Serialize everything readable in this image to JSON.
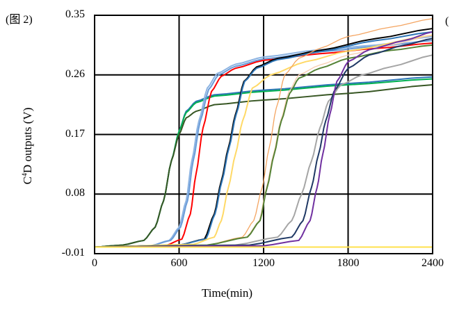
{
  "figure_label": "(图 2)",
  "edge_label": "(",
  "chart_data": {
    "type": "line",
    "title": "",
    "xlabel": "Time(min)",
    "ylabel_main": "C",
    "ylabel_sup": "4",
    "ylabel_rest": "D outputs (V)",
    "xlim": [
      0,
      2400
    ],
    "ylim": [
      -0.01,
      0.35
    ],
    "xticks": [
      "0",
      "600",
      "1200",
      "1800",
      "2400"
    ],
    "xtick_values": [
      0,
      600,
      1200,
      1800,
      2400
    ],
    "yticks": [
      "0.35",
      "0.26",
      "0.17",
      "0.08",
      "-0.01"
    ],
    "ytick_values": [
      0.35,
      0.26,
      0.17,
      0.08,
      -0.01
    ],
    "grid": true,
    "legend": "none",
    "series": [
      {
        "name": "teal",
        "color": "#2e75b6",
        "points": [
          [
            0,
            0
          ],
          [
            200,
            0.003
          ],
          [
            350,
            0.01
          ],
          [
            430,
            0.03
          ],
          [
            490,
            0.07
          ],
          [
            545,
            0.13
          ],
          [
            600,
            0.175
          ],
          [
            650,
            0.205
          ],
          [
            720,
            0.22
          ],
          [
            850,
            0.23
          ],
          [
            1200,
            0.237
          ],
          [
            1800,
            0.247
          ],
          [
            2400,
            0.257
          ]
        ]
      },
      {
        "name": "green",
        "color": "#00b050",
        "points": [
          [
            0,
            0
          ],
          [
            200,
            0.003
          ],
          [
            350,
            0.01
          ],
          [
            430,
            0.03
          ],
          [
            490,
            0.07
          ],
          [
            545,
            0.13
          ],
          [
            600,
            0.175
          ],
          [
            650,
            0.203
          ],
          [
            720,
            0.218
          ],
          [
            850,
            0.228
          ],
          [
            1200,
            0.235
          ],
          [
            1800,
            0.245
          ],
          [
            2400,
            0.254
          ]
        ]
      },
      {
        "name": "dark-green",
        "color": "#375623",
        "points": [
          [
            0,
            0
          ],
          [
            200,
            0.003
          ],
          [
            350,
            0.01
          ],
          [
            430,
            0.03
          ],
          [
            490,
            0.07
          ],
          [
            545,
            0.13
          ],
          [
            600,
            0.17
          ],
          [
            650,
            0.195
          ],
          [
            720,
            0.205
          ],
          [
            850,
            0.215
          ],
          [
            1200,
            0.222
          ],
          [
            1800,
            0.232
          ],
          [
            2400,
            0.245
          ]
        ]
      },
      {
        "name": "light-blue-1",
        "color": "#8db4e2",
        "points": [
          [
            0,
            0
          ],
          [
            400,
            0.002
          ],
          [
            530,
            0.01
          ],
          [
            600,
            0.03
          ],
          [
            650,
            0.07
          ],
          [
            690,
            0.13
          ],
          [
            740,
            0.19
          ],
          [
            800,
            0.24
          ],
          [
            870,
            0.262
          ],
          [
            1000,
            0.276
          ],
          [
            1200,
            0.287
          ],
          [
            1600,
            0.298
          ],
          [
            2000,
            0.305
          ],
          [
            2400,
            0.318
          ]
        ]
      },
      {
        "name": "light-blue-2",
        "color": "#6a9bd8",
        "points": [
          [
            0,
            0
          ],
          [
            400,
            0.002
          ],
          [
            540,
            0.01
          ],
          [
            610,
            0.03
          ],
          [
            660,
            0.07
          ],
          [
            700,
            0.13
          ],
          [
            750,
            0.19
          ],
          [
            810,
            0.238
          ],
          [
            880,
            0.26
          ],
          [
            1000,
            0.273
          ],
          [
            1200,
            0.284
          ],
          [
            1600,
            0.295
          ],
          [
            2000,
            0.303
          ],
          [
            2400,
            0.312
          ]
        ]
      },
      {
        "name": "red",
        "color": "#ff0000",
        "points": [
          [
            0,
            0
          ],
          [
            500,
            0.002
          ],
          [
            620,
            0.012
          ],
          [
            680,
            0.05
          ],
          [
            720,
            0.11
          ],
          [
            770,
            0.18
          ],
          [
            830,
            0.235
          ],
          [
            900,
            0.258
          ],
          [
            1000,
            0.27
          ],
          [
            1200,
            0.282
          ],
          [
            1600,
            0.292
          ],
          [
            2000,
            0.3
          ],
          [
            2400,
            0.308
          ]
        ]
      },
      {
        "name": "black",
        "color": "#000000",
        "points": [
          [
            0,
            0
          ],
          [
            600,
            0.003
          ],
          [
            780,
            0.012
          ],
          [
            850,
            0.05
          ],
          [
            900,
            0.1
          ],
          [
            950,
            0.15
          ],
          [
            1000,
            0.2
          ],
          [
            1060,
            0.25
          ],
          [
            1150,
            0.272
          ],
          [
            1300,
            0.285
          ],
          [
            1600,
            0.297
          ],
          [
            2000,
            0.315
          ],
          [
            2400,
            0.33
          ]
        ]
      },
      {
        "name": "steel-blue",
        "color": "#2e75b6",
        "points": [
          [
            0,
            0
          ],
          [
            600,
            0.003
          ],
          [
            790,
            0.012
          ],
          [
            855,
            0.05
          ],
          [
            905,
            0.1
          ],
          [
            955,
            0.15
          ],
          [
            1005,
            0.2
          ],
          [
            1065,
            0.25
          ],
          [
            1150,
            0.27
          ],
          [
            1300,
            0.283
          ],
          [
            1600,
            0.295
          ],
          [
            2000,
            0.312
          ],
          [
            2400,
            0.325
          ]
        ]
      },
      {
        "name": "yellow",
        "color": "#ffd966",
        "points": [
          [
            0,
            0
          ],
          [
            700,
            0.004
          ],
          [
            850,
            0.015
          ],
          [
            900,
            0.04
          ],
          [
            950,
            0.09
          ],
          [
            1000,
            0.14
          ],
          [
            1050,
            0.19
          ],
          [
            1120,
            0.24
          ],
          [
            1250,
            0.26
          ],
          [
            1500,
            0.28
          ],
          [
            1800,
            0.296
          ],
          [
            2400,
            0.32
          ]
        ]
      },
      {
        "name": "orange",
        "color": "#f4a460",
        "points": [
          [
            0,
            0
          ],
          [
            800,
            0.003
          ],
          [
            1050,
            0.015
          ],
          [
            1130,
            0.04
          ],
          [
            1190,
            0.09
          ],
          [
            1240,
            0.15
          ],
          [
            1290,
            0.21
          ],
          [
            1350,
            0.26
          ],
          [
            1450,
            0.285
          ],
          [
            1600,
            0.3
          ],
          [
            1800,
            0.318
          ],
          [
            2100,
            0.332
          ],
          [
            2400,
            0.345
          ]
        ]
      },
      {
        "name": "salmon",
        "color": "#f8cbad",
        "points": [
          [
            0,
            0
          ],
          [
            800,
            0.003
          ],
          [
            1080,
            0.015
          ],
          [
            1170,
            0.04
          ],
          [
            1220,
            0.09
          ],
          [
            1270,
            0.14
          ],
          [
            1320,
            0.19
          ],
          [
            1380,
            0.235
          ],
          [
            1450,
            0.26
          ],
          [
            1600,
            0.275
          ],
          [
            1800,
            0.29
          ],
          [
            2100,
            0.305
          ],
          [
            2400,
            0.32
          ]
        ]
      },
      {
        "name": "olive-green",
        "color": "#548235",
        "points": [
          [
            0,
            0
          ],
          [
            800,
            0.003
          ],
          [
            1085,
            0.015
          ],
          [
            1175,
            0.04
          ],
          [
            1225,
            0.09
          ],
          [
            1275,
            0.14
          ],
          [
            1325,
            0.19
          ],
          [
            1385,
            0.232
          ],
          [
            1450,
            0.255
          ],
          [
            1600,
            0.27
          ],
          [
            1800,
            0.285
          ],
          [
            2100,
            0.297
          ],
          [
            2400,
            0.305
          ]
        ]
      },
      {
        "name": "gray",
        "color": "#a5a5a5",
        "points": [
          [
            0,
            0
          ],
          [
            1000,
            0.003
          ],
          [
            1300,
            0.015
          ],
          [
            1400,
            0.04
          ],
          [
            1470,
            0.08
          ],
          [
            1540,
            0.13
          ],
          [
            1600,
            0.18
          ],
          [
            1660,
            0.22
          ],
          [
            1750,
            0.245
          ],
          [
            1900,
            0.26
          ],
          [
            2100,
            0.272
          ],
          [
            2400,
            0.29
          ]
        ]
      },
      {
        "name": "navy",
        "color": "#1f3864",
        "points": [
          [
            0,
            0
          ],
          [
            1100,
            0.003
          ],
          [
            1400,
            0.015
          ],
          [
            1480,
            0.04
          ],
          [
            1540,
            0.09
          ],
          [
            1590,
            0.14
          ],
          [
            1640,
            0.19
          ],
          [
            1700,
            0.235
          ],
          [
            1800,
            0.27
          ],
          [
            1950,
            0.29
          ],
          [
            2200,
            0.305
          ],
          [
            2400,
            0.315
          ]
        ]
      },
      {
        "name": "purple",
        "color": "#7030a0",
        "points": [
          [
            0,
            0
          ],
          [
            1200,
            0.002
          ],
          [
            1450,
            0.01
          ],
          [
            1530,
            0.04
          ],
          [
            1580,
            0.09
          ],
          [
            1620,
            0.14
          ],
          [
            1670,
            0.2
          ],
          [
            1720,
            0.25
          ],
          [
            1800,
            0.28
          ],
          [
            1950,
            0.298
          ],
          [
            2200,
            0.312
          ],
          [
            2400,
            0.325
          ]
        ]
      },
      {
        "name": "yellow-flat",
        "color": "#ffe14d",
        "points": [
          [
            0,
            0
          ],
          [
            1200,
            0
          ],
          [
            2400,
            0
          ]
        ]
      }
    ]
  }
}
